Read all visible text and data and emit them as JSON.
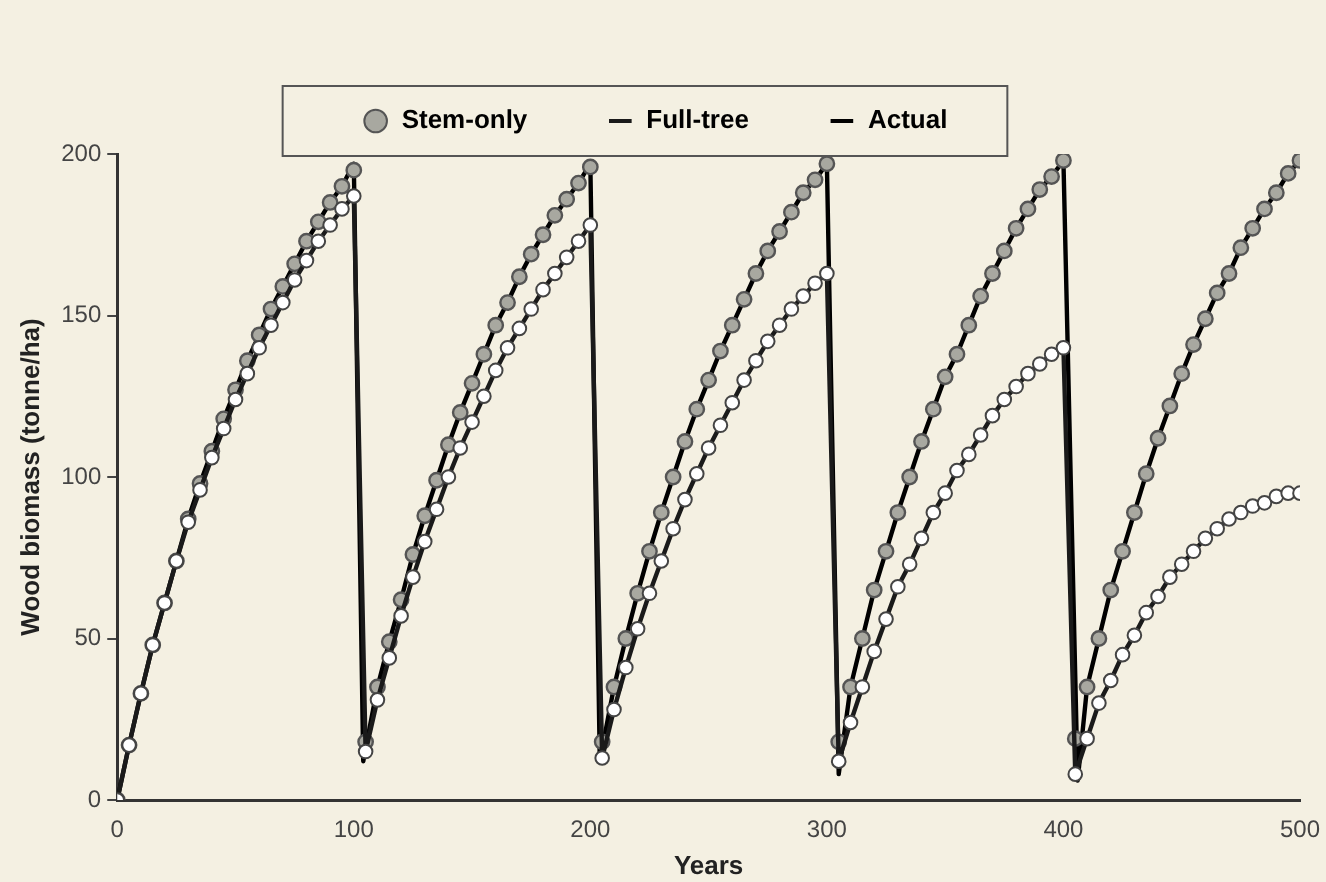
{
  "chart_data": {
    "type": "line",
    "xlabel": "Years",
    "ylabel": "Wood biomass (tonne/ha)",
    "xlim": [
      0,
      500
    ],
    "xticks": [
      0,
      100,
      200,
      300,
      400,
      500
    ],
    "ylim": [
      0,
      200
    ],
    "yticks": [
      0,
      50,
      100,
      150,
      200
    ],
    "legend": "top",
    "series": [
      {
        "name": "Stem-only",
        "type": "scatter",
        "marker": "circle",
        "color": "#a8a8a0",
        "x": [
          0,
          5,
          10,
          15,
          20,
          25,
          30,
          35,
          40,
          45,
          50,
          55,
          60,
          65,
          70,
          75,
          80,
          85,
          90,
          95,
          100,
          105,
          110,
          115,
          120,
          125,
          130,
          135,
          140,
          145,
          150,
          155,
          160,
          165,
          170,
          175,
          180,
          185,
          190,
          195,
          200,
          205,
          210,
          215,
          220,
          225,
          230,
          235,
          240,
          245,
          250,
          255,
          260,
          265,
          270,
          275,
          280,
          285,
          290,
          295,
          300,
          305,
          310,
          315,
          320,
          325,
          330,
          335,
          340,
          345,
          350,
          355,
          360,
          365,
          370,
          375,
          380,
          385,
          390,
          395,
          400,
          405,
          410,
          415,
          420,
          425,
          430,
          435,
          440,
          445,
          450,
          455,
          460,
          465,
          470,
          475,
          480,
          485,
          490,
          495,
          500
        ],
        "values": [
          0,
          17,
          33,
          48,
          61,
          74,
          87,
          98,
          108,
          118,
          127,
          136,
          144,
          152,
          159,
          166,
          173,
          179,
          185,
          190,
          195,
          18,
          35,
          49,
          62,
          76,
          88,
          99,
          110,
          120,
          129,
          138,
          147,
          154,
          162,
          169,
          175,
          181,
          186,
          191,
          196,
          18,
          35,
          50,
          64,
          77,
          89,
          100,
          111,
          121,
          130,
          139,
          147,
          155,
          163,
          170,
          176,
          182,
          188,
          192,
          197,
          18,
          35,
          50,
          65,
          77,
          89,
          100,
          111,
          121,
          131,
          138,
          147,
          156,
          163,
          170,
          177,
          183,
          189,
          193,
          198,
          19,
          35,
          50,
          65,
          77,
          89,
          101,
          112,
          122,
          132,
          141,
          149,
          157,
          163,
          171,
          177,
          183,
          188,
          194,
          198
        ]
      },
      {
        "name": "Full-tree",
        "marker": "circle",
        "color": "#1a1a1a",
        "x": [
          0,
          5,
          10,
          15,
          20,
          25,
          30,
          35,
          40,
          45,
          50,
          55,
          60,
          65,
          70,
          75,
          80,
          85,
          90,
          95,
          100,
          105,
          110,
          115,
          120,
          125,
          130,
          135,
          140,
          145,
          150,
          155,
          160,
          165,
          170,
          175,
          180,
          185,
          190,
          195,
          200,
          205,
          210,
          215,
          220,
          225,
          230,
          235,
          240,
          245,
          250,
          255,
          260,
          265,
          270,
          275,
          280,
          285,
          290,
          295,
          300,
          305,
          310,
          315,
          320,
          325,
          330,
          335,
          340,
          345,
          350,
          355,
          360,
          365,
          370,
          375,
          380,
          385,
          390,
          395,
          400,
          405,
          410,
          415,
          420,
          425,
          430,
          435,
          440,
          445,
          450,
          455,
          460,
          465,
          470,
          475,
          480,
          485,
          490,
          495,
          500
        ],
        "values": [
          0,
          17,
          33,
          48,
          61,
          74,
          86,
          96,
          106,
          115,
          124,
          132,
          140,
          147,
          154,
          161,
          167,
          173,
          178,
          183,
          187,
          15,
          31,
          44,
          57,
          69,
          80,
          90,
          100,
          109,
          117,
          125,
          133,
          140,
          146,
          152,
          158,
          163,
          168,
          173,
          178,
          13,
          28,
          41,
          53,
          64,
          74,
          84,
          93,
          101,
          109,
          116,
          123,
          130,
          136,
          142,
          147,
          152,
          156,
          160,
          163,
          12,
          24,
          35,
          46,
          56,
          66,
          73,
          81,
          89,
          95,
          102,
          107,
          113,
          119,
          124,
          128,
          132,
          135,
          138,
          140,
          8,
          19,
          30,
          37,
          45,
          51,
          58,
          63,
          69,
          73,
          77,
          81,
          84,
          87,
          89,
          91,
          92,
          94,
          95,
          95
        ]
      },
      {
        "name": "Actual",
        "marker": "none",
        "color": "#000000",
        "x": [
          0,
          5,
          10,
          15,
          20,
          25,
          30,
          35,
          40,
          45,
          50,
          55,
          60,
          65,
          70,
          75,
          80,
          85,
          90,
          95,
          100,
          104,
          110,
          115,
          120,
          125,
          130,
          135,
          140,
          145,
          150,
          155,
          160,
          165,
          170,
          175,
          180,
          185,
          190,
          195,
          200,
          204,
          210,
          215,
          220,
          225,
          230,
          235,
          240,
          245,
          250,
          255,
          260,
          265,
          270,
          275,
          280,
          285,
          290,
          295,
          300,
          305,
          310,
          315,
          320,
          325,
          330,
          335,
          340,
          345,
          350,
          355,
          360,
          365,
          370,
          375,
          380,
          385,
          390,
          395,
          400,
          406,
          410,
          415,
          420,
          425,
          430,
          435,
          440,
          445,
          450,
          455,
          460,
          465,
          470,
          475,
          480,
          485,
          490,
          495,
          500
        ],
        "values": [
          0,
          17,
          33,
          48,
          61,
          74,
          87,
          98,
          108,
          118,
          127,
          136,
          144,
          152,
          159,
          166,
          173,
          179,
          185,
          190,
          197,
          12,
          35,
          49,
          62,
          76,
          88,
          99,
          110,
          120,
          129,
          138,
          147,
          154,
          162,
          169,
          175,
          181,
          186,
          191,
          197,
          12,
          35,
          50,
          64,
          77,
          89,
          100,
          111,
          121,
          130,
          139,
          147,
          155,
          163,
          170,
          176,
          182,
          188,
          192,
          197,
          8,
          35,
          50,
          65,
          77,
          89,
          100,
          111,
          121,
          131,
          138,
          147,
          156,
          163,
          170,
          177,
          183,
          189,
          193,
          198,
          6,
          35,
          50,
          65,
          77,
          89,
          101,
          112,
          122,
          132,
          141,
          149,
          157,
          163,
          171,
          177,
          183,
          188,
          194,
          198
        ]
      }
    ]
  }
}
